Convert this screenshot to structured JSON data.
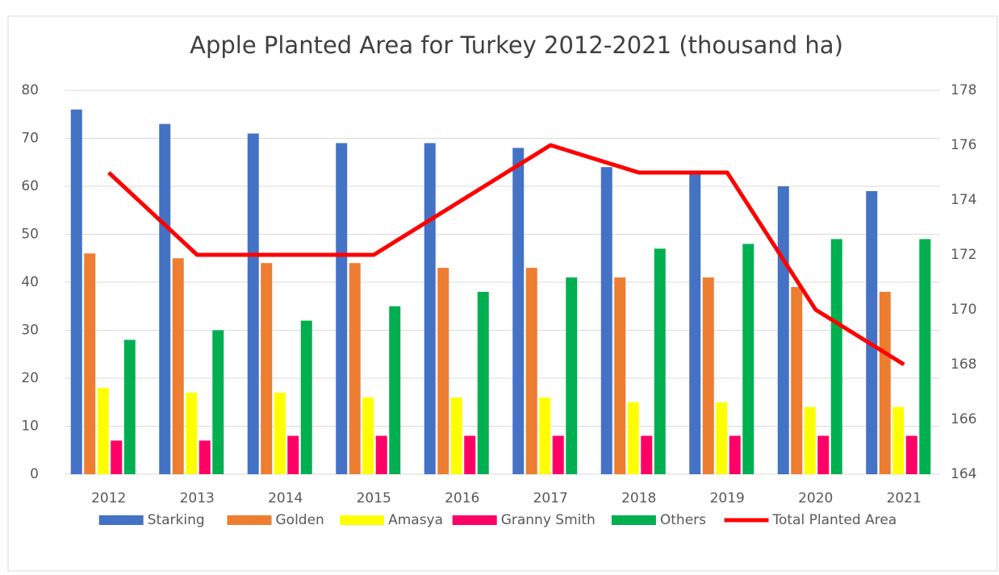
{
  "chart_data": {
    "type": "bar",
    "title": "Apple Planted Area for Turkey 2012-2021 (thousand ha)",
    "categories": [
      "2012",
      "2013",
      "2014",
      "2015",
      "2016",
      "2017",
      "2018",
      "2019",
      "2020",
      "2021"
    ],
    "series": [
      {
        "name": "Starking",
        "color": "#4472c4",
        "values": [
          76,
          73,
          71,
          69,
          69,
          68,
          64,
          63,
          60,
          59
        ]
      },
      {
        "name": "Golden",
        "color": "#ed7d31",
        "values": [
          46,
          45,
          44,
          44,
          43,
          43,
          41,
          41,
          39,
          38
        ]
      },
      {
        "name": "Amasya",
        "color": "#ffff00",
        "values": [
          18,
          17,
          17,
          16,
          16,
          16,
          15,
          15,
          14,
          14
        ]
      },
      {
        "name": "Granny Smith",
        "color": "#ff0066",
        "values": [
          7,
          7,
          8,
          8,
          8,
          8,
          8,
          8,
          8,
          8
        ]
      },
      {
        "name": "Others",
        "color": "#00b050",
        "values": [
          28,
          30,
          32,
          35,
          38,
          41,
          47,
          48,
          49,
          49
        ]
      },
      {
        "name": "Total Planted Area",
        "color": "#ff0000",
        "type": "line",
        "axis": "y2",
        "values": [
          175,
          172,
          172,
          172,
          174,
          176,
          175,
          175,
          170,
          168
        ]
      }
    ],
    "ylim": [
      0,
      80
    ],
    "yticks": [
      0,
      10,
      20,
      30,
      40,
      50,
      60,
      70,
      80
    ],
    "y2lim": [
      164,
      178
    ],
    "y2ticks": [
      164,
      166,
      168,
      170,
      172,
      174,
      176,
      178
    ],
    "grid": true,
    "legend": "bottom"
  }
}
